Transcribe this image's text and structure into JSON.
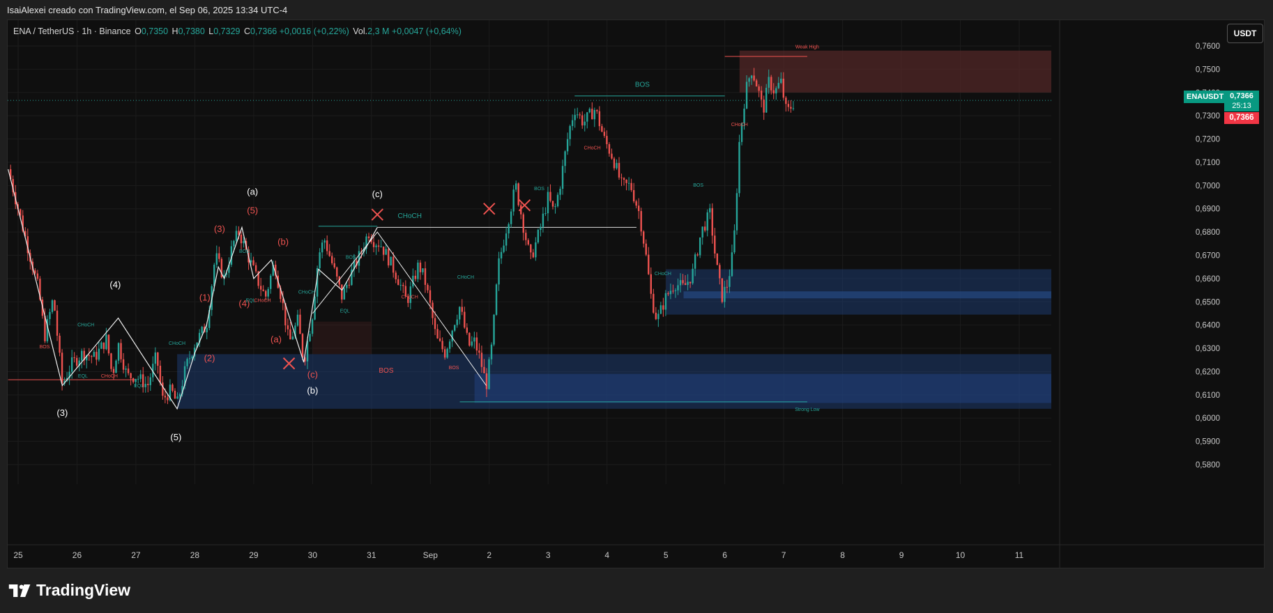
{
  "header": {
    "created_by": "IsaiAlexei creado con TradingView.com, el Sep 06, 2025 13:34 UTC-4"
  },
  "legend": {
    "symbol": "ENA / TetherUS · 1h · Binance",
    "open_label": "O",
    "open": "0,7350",
    "high_label": "H",
    "high": "0,7380",
    "low_label": "L",
    "low": "0,7329",
    "close_label": "C",
    "close": "0,7366",
    "change": "+0,0016 (+0,22%)",
    "vol_label": "Vol.",
    "vol": "2,3 M",
    "vol_change": "+0,0047 (+0,64%)"
  },
  "currency_button": "USDT",
  "price_tag": {
    "symbol": "ENAUSDT",
    "price": "0,7366",
    "countdown": "25:13",
    "price2": "0,7366"
  },
  "brand": {
    "name": "TradingView"
  },
  "colors": {
    "up": "#26a69a",
    "down": "#ef5350",
    "background": "#0f0f0f",
    "bullish_zone": "#1e3a6e",
    "bearish_zone": "#4a2222"
  },
  "chart_data": {
    "type": "candlestick",
    "title": "",
    "ylim": [
      0.577,
      0.7645
    ],
    "y_ticks": [
      "0,7600",
      "0,7500",
      "0,7400",
      "0,7300",
      "0,7200",
      "0,7100",
      "0,7000",
      "0,6900",
      "0,6800",
      "0,6700",
      "0,6600",
      "0,6500",
      "0,6400",
      "0,6300",
      "0,6200",
      "0,6100",
      "0,6000",
      "0,5900",
      "0,5800"
    ],
    "x_ticks": [
      "25",
      "26",
      "27",
      "28",
      "29",
      "30",
      "31",
      "Sep",
      "2",
      "3",
      "4",
      "5",
      "6",
      "7",
      "8",
      "9",
      "10",
      "11"
    ],
    "x_tick_days": [
      0,
      1,
      2,
      3,
      4,
      5,
      6,
      7,
      8,
      9,
      10,
      11,
      12,
      13,
      14,
      15,
      16,
      17
    ],
    "x_range_days": [
      -0.17,
      17.6
    ],
    "last_price": 0.7366,
    "price_path": [
      [
        -0.17,
        0.707
      ],
      [
        0,
        0.69
      ],
      [
        0.15,
        0.675
      ],
      [
        0.35,
        0.655
      ],
      [
        0.45,
        0.635
      ],
      [
        0.6,
        0.652
      ],
      [
        0.75,
        0.614
      ],
      [
        0.9,
        0.623
      ],
      [
        1.1,
        0.628
      ],
      [
        1.3,
        0.626
      ],
      [
        1.5,
        0.634
      ],
      [
        1.6,
        0.618
      ],
      [
        1.7,
        0.632
      ],
      [
        1.85,
        0.618
      ],
      [
        2.0,
        0.618
      ],
      [
        2.2,
        0.614
      ],
      [
        2.35,
        0.627
      ],
      [
        2.45,
        0.608
      ],
      [
        2.6,
        0.612
      ],
      [
        2.7,
        0.606
      ],
      [
        2.85,
        0.622
      ],
      [
        3.0,
        0.632
      ],
      [
        3.2,
        0.64
      ],
      [
        3.35,
        0.67
      ],
      [
        3.5,
        0.66
      ],
      [
        3.65,
        0.675
      ],
      [
        3.75,
        0.68
      ],
      [
        3.9,
        0.67
      ],
      [
        4.05,
        0.66
      ],
      [
        4.2,
        0.652
      ],
      [
        4.35,
        0.667
      ],
      [
        4.5,
        0.648
      ],
      [
        4.6,
        0.632
      ],
      [
        4.75,
        0.642
      ],
      [
        4.85,
        0.624
      ],
      [
        5.0,
        0.645
      ],
      [
        5.1,
        0.67
      ],
      [
        5.2,
        0.677
      ],
      [
        5.35,
        0.665
      ],
      [
        5.5,
        0.652
      ],
      [
        5.65,
        0.662
      ],
      [
        5.8,
        0.67
      ],
      [
        5.95,
        0.68
      ],
      [
        6.05,
        0.676
      ],
      [
        6.15,
        0.675
      ],
      [
        6.3,
        0.668
      ],
      [
        6.45,
        0.66
      ],
      [
        6.6,
        0.65
      ],
      [
        6.8,
        0.666
      ],
      [
        6.9,
        0.66
      ],
      [
        7.0,
        0.648
      ],
      [
        7.1,
        0.634
      ],
      [
        7.25,
        0.628
      ],
      [
        7.4,
        0.641
      ],
      [
        7.5,
        0.648
      ],
      [
        7.65,
        0.631
      ],
      [
        7.75,
        0.633
      ],
      [
        7.85,
        0.625
      ],
      [
        7.95,
        0.614
      ],
      [
        8.05,
        0.632
      ],
      [
        8.15,
        0.665
      ],
      [
        8.3,
        0.683
      ],
      [
        8.45,
        0.7
      ],
      [
        8.6,
        0.68
      ],
      [
        8.7,
        0.668
      ],
      [
        8.85,
        0.68
      ],
      [
        9.0,
        0.695
      ],
      [
        9.1,
        0.688
      ],
      [
        9.2,
        0.7
      ],
      [
        9.35,
        0.723
      ],
      [
        9.45,
        0.733
      ],
      [
        9.6,
        0.727
      ],
      [
        9.8,
        0.733
      ],
      [
        9.95,
        0.72
      ],
      [
        10.1,
        0.712
      ],
      [
        10.25,
        0.7
      ],
      [
        10.4,
        0.7
      ],
      [
        10.55,
        0.688
      ],
      [
        10.65,
        0.672
      ],
      [
        10.75,
        0.652
      ],
      [
        10.85,
        0.642
      ],
      [
        11.0,
        0.652
      ],
      [
        11.15,
        0.658
      ],
      [
        11.3,
        0.656
      ],
      [
        11.45,
        0.662
      ],
      [
        11.6,
        0.68
      ],
      [
        11.75,
        0.688
      ],
      [
        11.85,
        0.667
      ],
      [
        11.95,
        0.652
      ],
      [
        12.05,
        0.658
      ],
      [
        12.15,
        0.673
      ],
      [
        12.25,
        0.72
      ],
      [
        12.35,
        0.74
      ],
      [
        12.45,
        0.75
      ],
      [
        12.55,
        0.743
      ],
      [
        12.65,
        0.732
      ],
      [
        12.75,
        0.745
      ],
      [
        12.85,
        0.74
      ],
      [
        12.95,
        0.745
      ],
      [
        13.05,
        0.731
      ],
      [
        13.15,
        0.735
      ],
      [
        13.2,
        0.7366
      ]
    ],
    "price_line_extremes": [
      [
        -0.17,
        0.707
      ],
      [
        0.75,
        0.614
      ],
      [
        1.7,
        0.632
      ],
      [
        2.7,
        0.606
      ],
      [
        3.75,
        0.68
      ],
      [
        5.0,
        0.645
      ],
      [
        6.1,
        0.68
      ],
      [
        7.95,
        0.614
      ],
      [
        9.45,
        0.733
      ],
      [
        10.85,
        0.642
      ],
      [
        12.45,
        0.75
      ],
      [
        13.2,
        0.7366
      ]
    ],
    "wave_path_a": [
      [
        -0.17,
        0.707
      ],
      [
        0.75,
        0.614
      ],
      [
        1.7,
        0.643
      ],
      [
        2.7,
        0.604
      ],
      [
        3.0,
        0.628
      ],
      [
        3.2,
        0.64
      ],
      [
        3.4,
        0.665
      ],
      [
        3.5,
        0.66
      ],
      [
        3.8,
        0.682
      ],
      [
        4.0,
        0.66
      ],
      [
        4.3,
        0.668
      ],
      [
        4.85,
        0.624
      ],
      [
        5.1,
        0.664
      ],
      [
        5.5,
        0.655
      ],
      [
        6.1,
        0.682
      ]
    ],
    "wave_path_b": [
      [
        0.75,
        0.614
      ],
      [
        1.7,
        0.643
      ]
    ],
    "horizontal_levels": [
      {
        "from": -0.17,
        "to": 2.0,
        "y": 0.6165,
        "color": "#ef5350"
      },
      {
        "from": 5.1,
        "to": 6.1,
        "y": 0.6825,
        "color": "#26a69a"
      },
      {
        "from": 6.1,
        "to": 10.5,
        "y": 0.682,
        "color": "#e0e0e0"
      },
      {
        "from": 9.45,
        "to": 12.0,
        "y": 0.7385,
        "color": "#26a69a"
      },
      {
        "from": 12.0,
        "to": 13.4,
        "y": 0.7555,
        "color": "#ef5350"
      },
      {
        "from": 7.5,
        "to": 13.4,
        "y": 0.607,
        "color": "#26a69a"
      }
    ],
    "zones": [
      {
        "from": 2.7,
        "to": 17.6,
        "y0": 0.604,
        "y1": 0.6275,
        "color": "#1e3a6e",
        "opacity": 0.55
      },
      {
        "from": 7.75,
        "to": 17.6,
        "y0": 0.6065,
        "y1": 0.619,
        "color": "#24488a",
        "opacity": 0.45
      },
      {
        "from": 11.0,
        "to": 17.6,
        "y0": 0.6445,
        "y1": 0.664,
        "color": "#1e3a6e",
        "opacity": 0.55
      },
      {
        "from": 11.3,
        "to": 17.6,
        "y0": 0.6515,
        "y1": 0.6545,
        "color": "#2a5599",
        "opacity": 0.5
      },
      {
        "from": 12.25,
        "to": 17.6,
        "y0": 0.74,
        "y1": 0.758,
        "color": "#5a2a2a",
        "opacity": 0.65
      },
      {
        "from": 5.0,
        "to": 6.0,
        "y0": 0.6275,
        "y1": 0.6415,
        "color": "#4a2222",
        "opacity": 0.35
      }
    ],
    "wave_labels": [
      {
        "t": "(a)",
        "d": 3.98,
        "y": 0.696,
        "c": "#ffffff"
      },
      {
        "t": "(5)",
        "d": 3.98,
        "y": 0.688,
        "c": "#ef5350"
      },
      {
        "t": "(3)",
        "d": 3.42,
        "y": 0.68,
        "c": "#ef5350"
      },
      {
        "t": "(b)",
        "d": 4.5,
        "y": 0.6745,
        "c": "#ef5350"
      },
      {
        "t": "(4)",
        "d": 1.65,
        "y": 0.656,
        "c": "#ffffff"
      },
      {
        "t": "(1)",
        "d": 3.17,
        "y": 0.6505,
        "c": "#ef5350"
      },
      {
        "t": "(4)",
        "d": 3.84,
        "y": 0.648,
        "c": "#ef5350"
      },
      {
        "t": "(a)",
        "d": 4.38,
        "y": 0.6325,
        "c": "#ef5350"
      },
      {
        "t": "(2)",
        "d": 3.25,
        "y": 0.6245,
        "c": "#ef5350"
      },
      {
        "t": "(c)",
        "d": 5.0,
        "y": 0.6175,
        "c": "#ef5350"
      },
      {
        "t": "(b)",
        "d": 5.0,
        "y": 0.6105,
        "c": "#ffffff"
      },
      {
        "t": "(3)",
        "d": 0.75,
        "y": 0.601,
        "c": "#ffffff"
      },
      {
        "t": "(5)",
        "d": 2.68,
        "y": 0.5905,
        "c": "#ffffff"
      },
      {
        "t": "(c)",
        "d": 6.1,
        "y": 0.695,
        "c": "#ffffff"
      }
    ],
    "annotations": [
      {
        "t": "Weak High",
        "d": 13.4,
        "y": 0.759,
        "c": "#ef5350",
        "s": 7
      },
      {
        "t": "BOS",
        "d": 10.6,
        "y": 0.7425,
        "c": "#26a69a",
        "s": 10
      },
      {
        "t": "CHoCH",
        "d": 6.65,
        "y": 0.686,
        "c": "#26a69a",
        "s": 10
      },
      {
        "t": "BOS",
        "d": 6.25,
        "y": 0.6195,
        "c": "#ef5350",
        "s": 10
      },
      {
        "t": "Strong Low",
        "d": 13.4,
        "y": 0.603,
        "c": "#26a69a",
        "s": 7
      },
      {
        "t": "CHoCH",
        "d": 12.25,
        "y": 0.7255,
        "c": "#ef5350",
        "s": 7
      },
      {
        "t": "CHoCH",
        "d": 9.75,
        "y": 0.7155,
        "c": "#ef5350",
        "s": 7
      },
      {
        "t": "BOS",
        "d": 11.55,
        "y": 0.6995,
        "c": "#26a69a",
        "s": 7
      },
      {
        "t": "BOS",
        "d": 8.85,
        "y": 0.698,
        "c": "#26a69a",
        "s": 7
      },
      {
        "t": "CHoCH",
        "d": 7.6,
        "y": 0.66,
        "c": "#26a69a",
        "s": 7
      },
      {
        "t": "CHoCH",
        "d": 10.95,
        "y": 0.6615,
        "c": "#26a69a",
        "s": 7
      },
      {
        "t": "CHoCH",
        "d": 6.65,
        "y": 0.6515,
        "c": "#ef5350",
        "s": 7
      },
      {
        "t": "BOS",
        "d": 7.4,
        "y": 0.621,
        "c": "#ef5350",
        "s": 7
      },
      {
        "t": "BOS",
        "d": 5.65,
        "y": 0.6685,
        "c": "#26a69a",
        "s": 7
      },
      {
        "t": "EQL",
        "d": 5.55,
        "y": 0.6455,
        "c": "#26a69a",
        "s": 7
      },
      {
        "t": "CHoCH",
        "d": 4.9,
        "y": 0.6535,
        "c": "#26a69a",
        "s": 7
      },
      {
        "t": "EQL",
        "d": 3.95,
        "y": 0.65,
        "c": "#26a69a",
        "s": 7
      },
      {
        "t": "BOS",
        "d": 3.84,
        "y": 0.671,
        "c": "#26a69a",
        "s": 7
      },
      {
        "t": "CHoCH",
        "d": 4.15,
        "y": 0.65,
        "c": "#ef5350",
        "s": 7
      },
      {
        "t": "CHoCH",
        "d": 2.7,
        "y": 0.6315,
        "c": "#26a69a",
        "s": 7
      },
      {
        "t": "CHoCH",
        "d": 1.15,
        "y": 0.6395,
        "c": "#26a69a",
        "s": 7
      },
      {
        "t": "EQL",
        "d": 1.1,
        "y": 0.6175,
        "c": "#26a69a",
        "s": 7
      },
      {
        "t": "CHoCH",
        "d": 1.55,
        "y": 0.6175,
        "c": "#ef5350",
        "s": 7
      },
      {
        "t": "BOS",
        "d": 0.45,
        "y": 0.63,
        "c": "#ef5350",
        "s": 7
      },
      {
        "t": "EQL",
        "d": 2.05,
        "y": 0.6132,
        "c": "#26a69a",
        "s": 7
      }
    ],
    "cross_marks": [
      [
        6.1,
        0.6875
      ],
      [
        4.6,
        0.6235
      ],
      [
        8.0,
        0.69
      ],
      [
        8.6,
        0.6915
      ]
    ],
    "x_lines": [],
    "current_price_line": 0.7366
  }
}
